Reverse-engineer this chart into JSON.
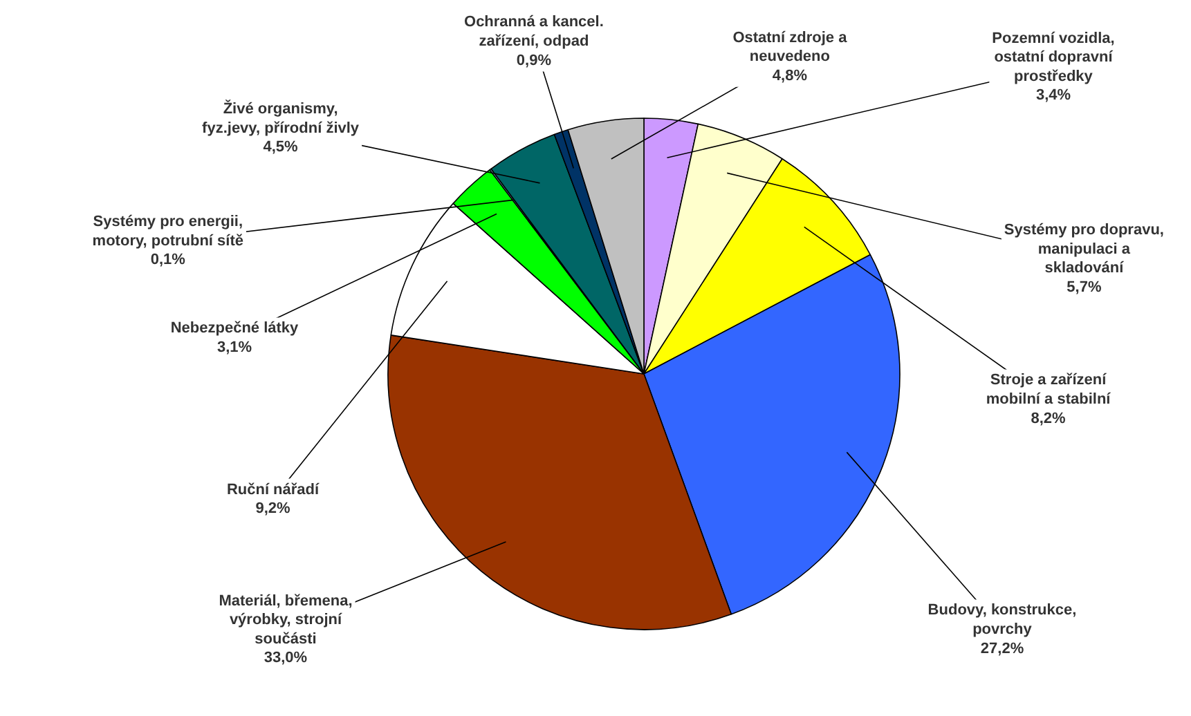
{
  "chart_data": {
    "type": "pie",
    "categories": [
      "Pozemní vozidla,\nostatní dopravní\nprostředky",
      "Systémy pro dopravu,\nmanipulaci a\nskladování",
      "Stroje a zařízení\nmobilní a stabilní",
      "Budovy, konstrukce,\npovrchy",
      "Materiál, břemena,\nvýrobky, strojní\nsoučásti",
      "Ruční nářadí",
      "Nebezpečné látky",
      "Systémy pro energii,\nmotory, potrubní sítě",
      "Živé organismy,\nfyz.jevy, přírodní živly",
      "Ochranná a kancel.\nzařízení, odpad",
      "Ostatní zdroje a\nneuvedeno"
    ],
    "values": [
      3.4,
      5.7,
      8.2,
      27.2,
      33.0,
      9.2,
      3.1,
      0.1,
      4.5,
      0.9,
      4.8
    ],
    "colors": [
      "#cc99ff",
      "#ffffcc",
      "#ffff00",
      "#3366ff",
      "#993300",
      "#ffffff",
      "#00ff00",
      "#99ccff",
      "#006666",
      "#003366",
      "#c0c0c0"
    ],
    "value_labels": [
      "3,4%",
      "5,7%",
      "8,2%",
      "27,2%",
      "33,0%",
      "9,2%",
      "3,1%",
      "0,1%",
      "4,5%",
      "0,9%",
      "4,8%"
    ]
  }
}
